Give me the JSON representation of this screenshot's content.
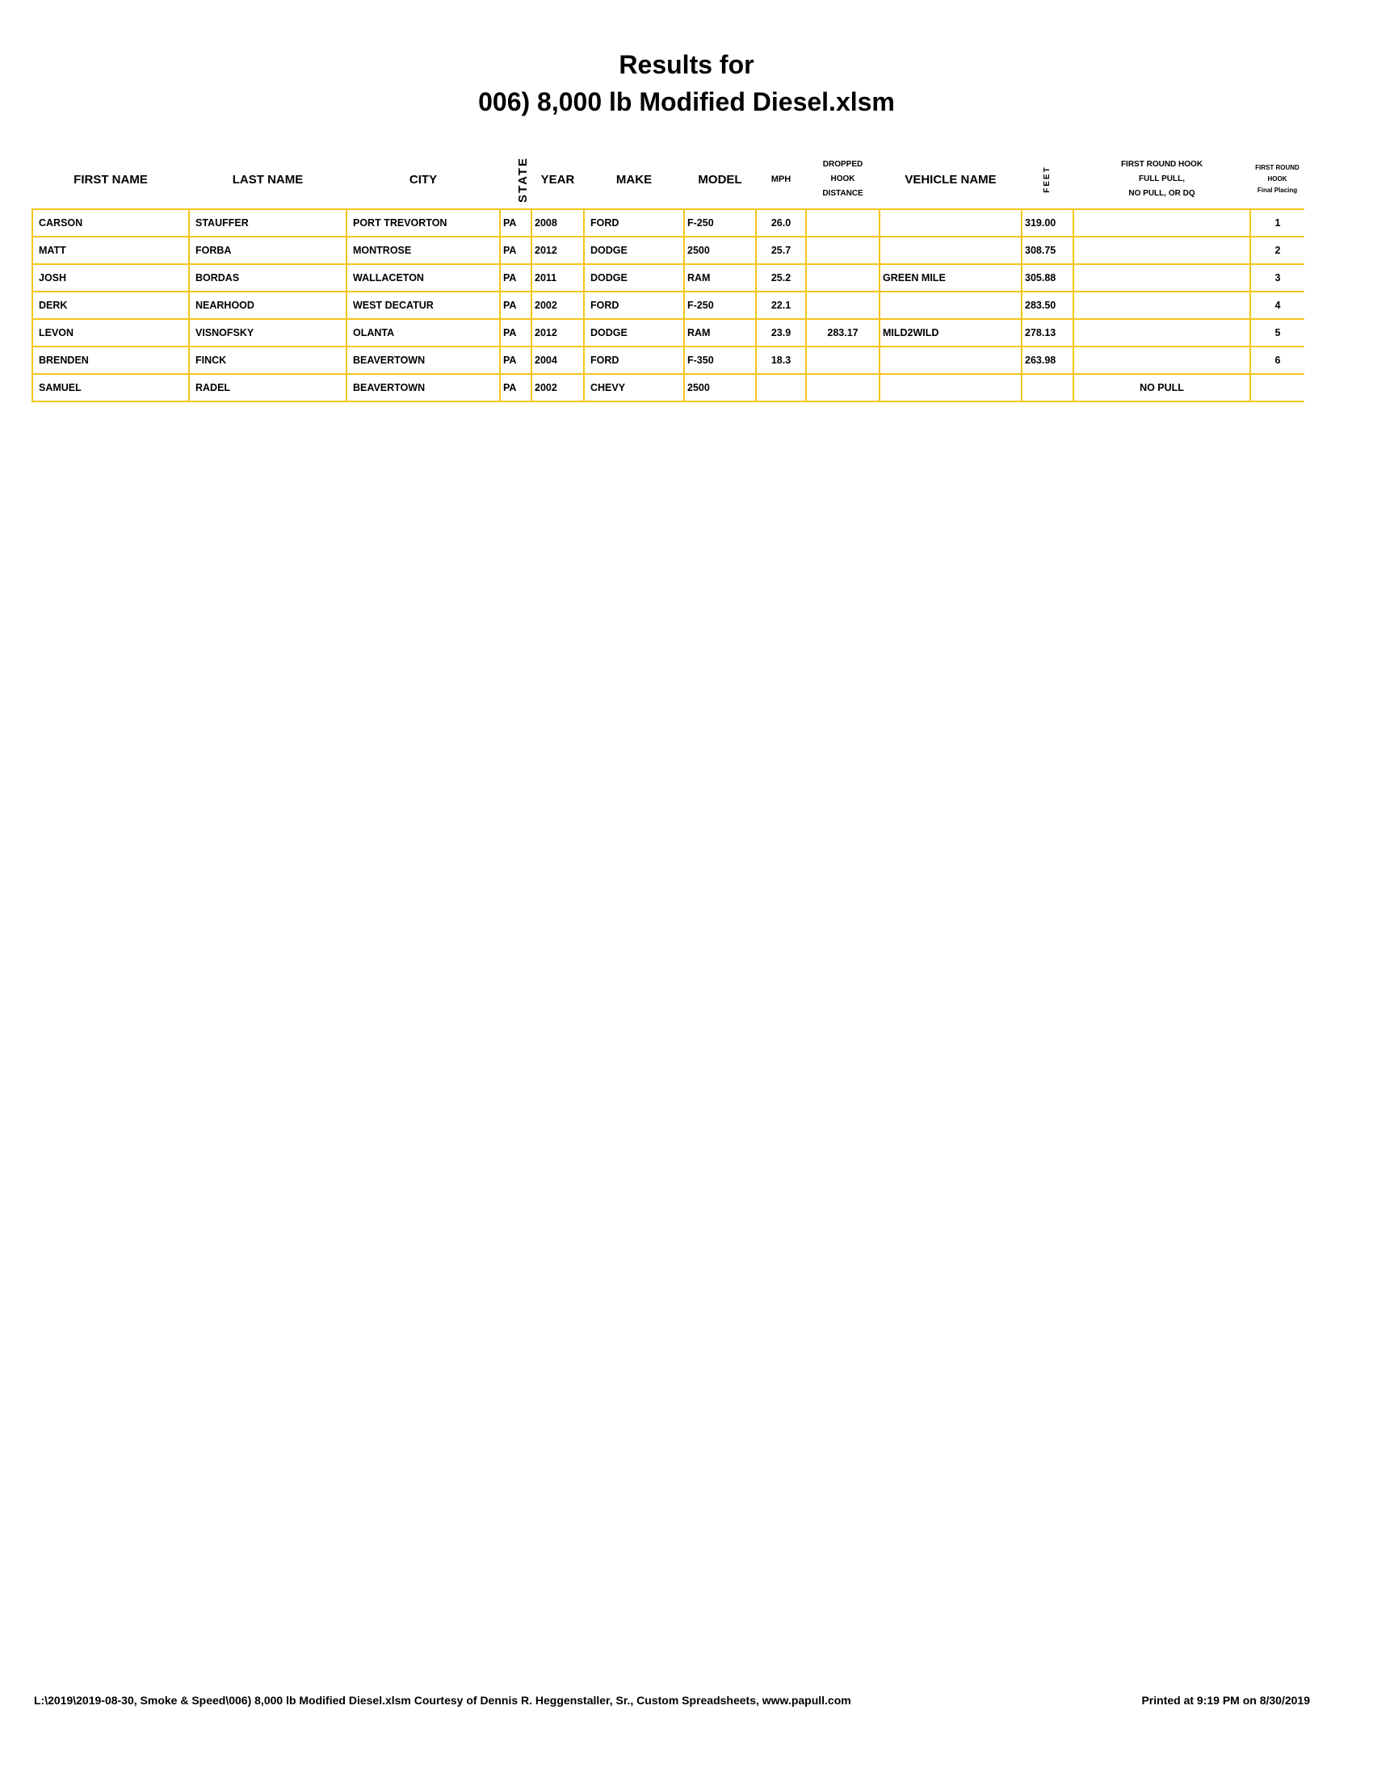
{
  "title": {
    "line1": "Results for",
    "line2": "006) 8,000 lb Modified Diesel.xlsm"
  },
  "columns": [
    "FIRST NAME",
    "LAST NAME",
    "CITY",
    "STATE",
    "YEAR",
    "MAKE",
    "MODEL",
    "MPH",
    "DROPPED HOOK DISTANCE",
    "VEHICLE NAME",
    "FEET",
    "FIRST ROUND HOOK FULL PULL, NO PULL, OR DQ",
    "FIRST ROUND HOOK Final Placing"
  ],
  "header": {
    "dropped": [
      "DROPPED",
      "HOOK",
      "DISTANCE"
    ],
    "first_round": [
      "FIRST ROUND HOOK",
      "FULL PULL,",
      "NO PULL, OR DQ"
    ],
    "placing": [
      "FIRST ROUND",
      "HOOK",
      "Final Placing"
    ]
  },
  "rows": [
    [
      "CARSON",
      "STAUFFER",
      "PORT TREVORTON",
      "PA",
      "2008",
      "FORD",
      "F-250",
      "26.0",
      "",
      "",
      "319.00",
      "",
      "1"
    ],
    [
      "MATT",
      "FORBA",
      "MONTROSE",
      "PA",
      "2012",
      "DODGE",
      "2500",
      "25.7",
      "",
      "",
      "308.75",
      "",
      "2"
    ],
    [
      "JOSH",
      "BORDAS",
      "WALLACETON",
      "PA",
      "2011",
      "DODGE",
      "RAM",
      "25.2",
      "",
      "GREEN MILE",
      "305.88",
      "",
      "3"
    ],
    [
      "DERK",
      "NEARHOOD",
      "WEST DECATUR",
      "PA",
      "2002",
      "FORD",
      "F-250",
      "22.1",
      "",
      "",
      "283.50",
      "",
      "4"
    ],
    [
      "LEVON",
      "VISNOFSKY",
      "OLANTA",
      "PA",
      "2012",
      "DODGE",
      "RAM",
      "23.9",
      "283.17",
      "MILD2WILD",
      "278.13",
      "",
      "5"
    ],
    [
      "BRENDEN",
      "FINCK",
      "BEAVERTOWN",
      "PA",
      "2004",
      "FORD",
      "F-350",
      "18.3",
      "",
      "",
      "263.98",
      "",
      "6"
    ],
    [
      "SAMUEL",
      "RADEL",
      "BEAVERTOWN",
      "PA",
      "2002",
      "CHEVY",
      "2500",
      "",
      "",
      "",
      "",
      "NO PULL",
      ""
    ]
  ],
  "footer": {
    "path": "L:\\2019\\2019-08-30, Smoke & Speed\\006) 8,000 lb Modified Diesel.xlsm  Courtesy of Dennis R. Heggenstaller, Sr., Custom Spreadsheets, www.papull.com",
    "printed": "Printed at 9:19 PM on 8/30/2019"
  },
  "colors": {
    "grid": "#f5c518"
  }
}
